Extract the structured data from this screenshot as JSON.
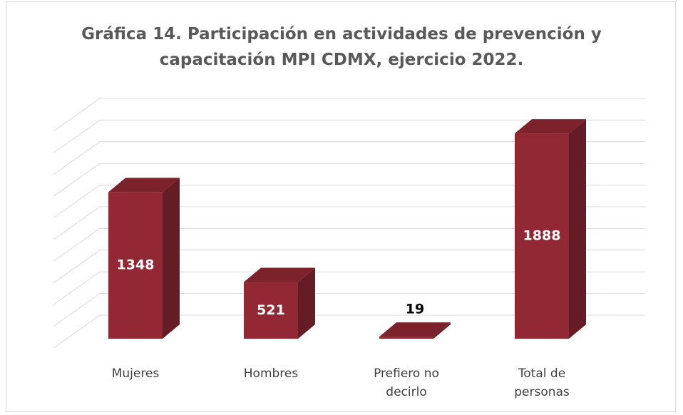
{
  "chart_data": {
    "type": "bar3d",
    "title": "Gráfica 14. Participación en actividades de prevención y capacitación MPI CDMX, ejercicio 2022.",
    "categories": [
      "Mujeres",
      "Hombres",
      "Prefiero no decirlo",
      "Total de personas"
    ],
    "values": [
      1348,
      521,
      19,
      1888
    ],
    "color": "#922833",
    "ylim": [
      0,
      2000
    ],
    "yticks": [
      0,
      200,
      400,
      600,
      800,
      1000,
      1200,
      1400,
      1600,
      1800,
      2000
    ],
    "grid": true
  }
}
